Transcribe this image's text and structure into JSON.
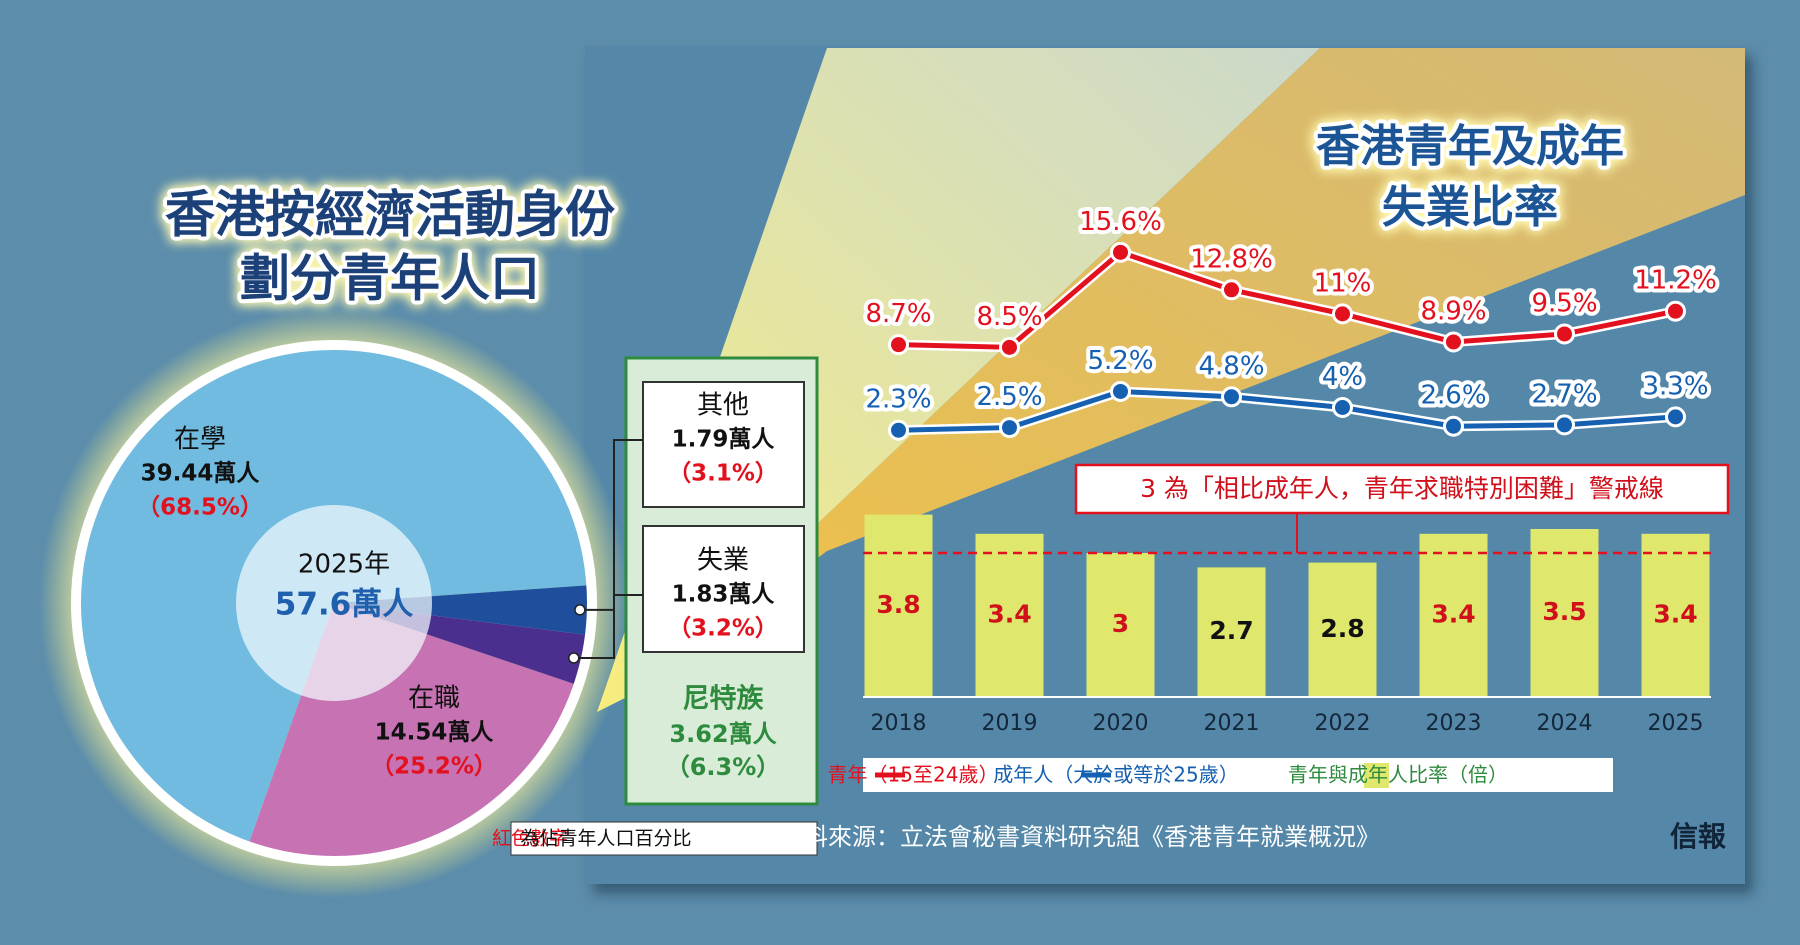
{
  "chart_data": [
    {
      "type": "pie",
      "title": [
        "香港按經濟活動身份",
        "劃分青年人口"
      ],
      "center_label": "2025年",
      "total_label": "57.6萬人",
      "categories": [
        "在學",
        "在職",
        "失業",
        "其他"
      ],
      "values": [
        39.44,
        14.54,
        1.83,
        1.79
      ],
      "value_labels": [
        "39.44萬人",
        "14.54萬人",
        "1.83萬人",
        "1.79萬人"
      ],
      "percent_labels": [
        "（68.5%）",
        "（25.2%）",
        "（3.2%）",
        "（3.1%）"
      ],
      "colors": [
        "#70bbdf",
        "#c672b3",
        "#4a2f8e",
        "#1f4f9c"
      ],
      "group": {
        "name": "尼特族",
        "value_label": "3.62萬人",
        "percent_label": "（6.3%）"
      },
      "note": {
        "highlight": "紅色數字",
        "text": "為佔青年人口百分比"
      }
    },
    {
      "type": "line",
      "title": [
        "香港青年及成年",
        "失業比率"
      ],
      "categories": [
        "2018",
        "2019",
        "2020",
        "2021",
        "2022",
        "2023",
        "2024",
        "2025"
      ],
      "ylim": [
        0,
        16
      ],
      "y2lim": [
        0,
        4
      ],
      "series": [
        {
          "name": "青年（15至24歲）",
          "color": "#e3101e",
          "values": [
            8.7,
            8.5,
            15.6,
            12.8,
            11,
            8.9,
            9.5,
            11.2
          ],
          "value_labels": [
            "8.7%",
            "8.5%",
            "15.6%",
            "12.8%",
            "11%",
            "8.9%",
            "9.5%",
            "11.2%"
          ]
        },
        {
          "name": "成年人（大於或等於25歲）",
          "color": "#1560b0",
          "values": [
            2.3,
            2.5,
            5.2,
            4.8,
            4,
            2.6,
            2.7,
            3.3
          ],
          "value_labels": [
            "2.3%",
            "2.5%",
            "5.2%",
            "4.8%",
            "4%",
            "2.6%",
            "2.7%",
            "3.3%"
          ]
        },
        {
          "name": "青年與成年人比率（倍）",
          "color": "#dfe86c",
          "type": "bar",
          "axis": "y2",
          "values": [
            3.8,
            3.4,
            3,
            2.7,
            2.8,
            3.4,
            3.5,
            3.4
          ]
        }
      ],
      "reference_line": {
        "value": 3,
        "axis": "y2",
        "label": "3 為「相比成年人，青年求職特別困難」警戒線"
      }
    }
  ],
  "footer": {
    "source": "資料來源：立法會秘書資料研究組《香港青年就業概況》",
    "logo": "信報"
  }
}
